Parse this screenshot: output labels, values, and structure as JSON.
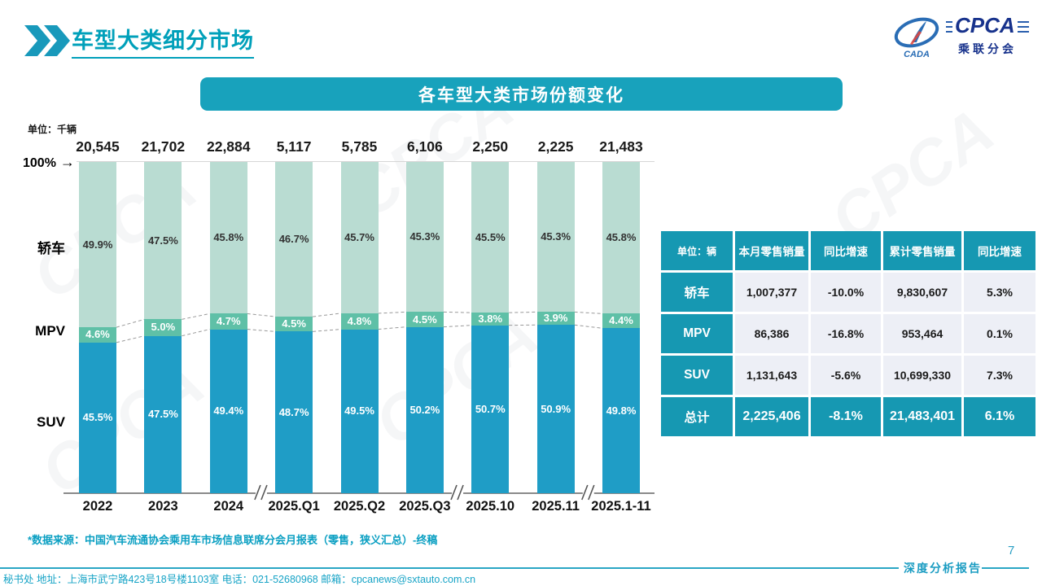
{
  "page": {
    "title": "车型大类细分市场",
    "page_number": "7",
    "report_label": "深度分析报告",
    "source_note": "*数据来源：中国汽车流通协会乘用车市场信息联席分会月报表（零售，狭义汇总）-终稿",
    "contact": "秘书处  地址：上海市武宁路423号18号楼1103室  电话：021-52680968   邮箱：cpcanews@sxtauto.com.cn"
  },
  "logo": {
    "cpca": "CPCA",
    "cada": "CADA",
    "subtitle": "乘联分会"
  },
  "chart": {
    "banner_title": "各车型大类市场份额变化",
    "unit_label": "单位：千辆",
    "axis_100_label": "100%",
    "arrow": "→"
  },
  "chart_data": {
    "type": "bar",
    "stacked": true,
    "unit": "千辆",
    "title": "各车型大类市场份额变化",
    "categories": [
      "2022",
      "2023",
      "2024",
      "2025.Q1",
      "2025.Q2",
      "2025.Q3",
      "2025.10",
      "2025.11",
      "2025.1-11"
    ],
    "totals": [
      20545,
      21702,
      22884,
      5117,
      5785,
      6106,
      2250,
      2225,
      21483
    ],
    "series": [
      {
        "key": "sedan",
        "name": "轿车",
        "color": "#b9dcd2",
        "label_color": "#333333",
        "values": [
          49.9,
          47.5,
          45.8,
          46.7,
          45.7,
          45.3,
          45.5,
          45.3,
          45.8
        ]
      },
      {
        "key": "mpv",
        "name": "MPV",
        "color": "#5fc0a7",
        "label_color": "#ffffff",
        "values": [
          4.6,
          5.0,
          4.7,
          4.5,
          4.8,
          4.5,
          3.8,
          3.9,
          4.4
        ]
      },
      {
        "key": "suv",
        "name": "SUV",
        "color": "#1f9dc6",
        "label_color": "#ffffff",
        "values": [
          45.5,
          47.5,
          49.4,
          48.7,
          49.5,
          50.2,
          50.7,
          50.9,
          49.8
        ]
      }
    ],
    "ylim": [
      0,
      100
    ],
    "value_suffix": "%",
    "axis_break_after": [
      2,
      5,
      7
    ],
    "legend_position": "left-axis-labels",
    "grid": false
  },
  "table": {
    "headers": [
      "单位：辆",
      "本月零售销量",
      "同比增速",
      "累计零售销量",
      "同比增速"
    ],
    "rows": [
      {
        "label": "轿车",
        "cells": [
          "1,007,377",
          "-10.0%",
          "9,830,607",
          "5.3%"
        ],
        "highlight": false
      },
      {
        "label": "MPV",
        "cells": [
          "86,386",
          "-16.8%",
          "953,464",
          "0.1%"
        ],
        "highlight": false
      },
      {
        "label": "SUV",
        "cells": [
          "1,131,643",
          "-5.6%",
          "10,699,330",
          "7.3%"
        ],
        "highlight": false
      },
      {
        "label": "总计",
        "cells": [
          "2,225,406",
          "-8.1%",
          "21,483,401",
          "6.1%"
        ],
        "highlight": true
      }
    ]
  }
}
